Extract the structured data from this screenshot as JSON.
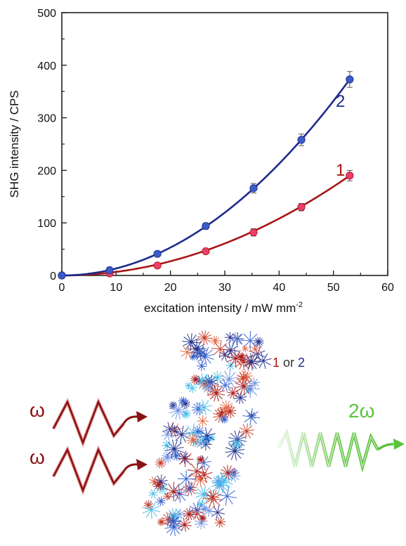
{
  "chart_data": {
    "type": "scatter",
    "title": "",
    "xlabel": "excitation intensity / mW mm",
    "xlabel_superscript": "-2",
    "ylabel": "SHG intensity / CPS",
    "xlim": [
      0,
      60
    ],
    "ylim": [
      0,
      500
    ],
    "xticks": [
      0,
      10,
      20,
      30,
      40,
      50,
      60
    ],
    "yticks": [
      0,
      100,
      200,
      300,
      400,
      500
    ],
    "grid": false,
    "series": [
      {
        "name": "1",
        "color": "#e8406a",
        "fit_color": "#a81414",
        "x": [
          0,
          8.8,
          17.6,
          26.5,
          35.3,
          44.1,
          53.0
        ],
        "y": [
          0,
          4,
          19,
          46,
          82,
          130,
          190
        ],
        "error": [
          0,
          2,
          3,
          4,
          7,
          7,
          10
        ],
        "fit_coeff": 0.0676
      },
      {
        "name": "2",
        "color": "#3a5cc8",
        "fit_color": "#1e2a8c",
        "x": [
          0,
          8.8,
          17.6,
          26.5,
          35.3,
          44.1,
          53.0
        ],
        "y": [
          0,
          10,
          41,
          94,
          166,
          258,
          373
        ],
        "error": [
          0,
          2,
          4,
          6,
          9,
          11,
          15
        ],
        "fit_coeff": 0.1328
      }
    ]
  },
  "scheme": {
    "input_label_top": "ω",
    "input_label_bottom": "ω",
    "output_label": "2ω",
    "structure_label_first": "1",
    "structure_label_or": " or ",
    "structure_label_second": "2",
    "input_color": "#8a1212",
    "output_color": "#5cc23c"
  }
}
